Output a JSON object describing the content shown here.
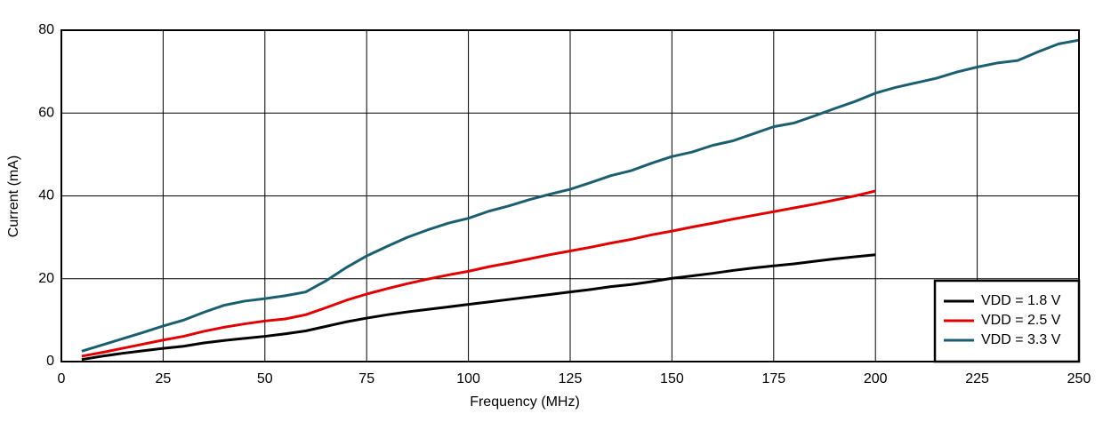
{
  "chart_data": {
    "type": "line",
    "xlabel": "Frequency (MHz)",
    "ylabel": "Current (mA)",
    "x": [
      5,
      10,
      15,
      20,
      25,
      30,
      35,
      40,
      45,
      50,
      55,
      60,
      65,
      70,
      75,
      80,
      85,
      90,
      95,
      100,
      105,
      110,
      115,
      120,
      125,
      130,
      135,
      140,
      145,
      150,
      155,
      160,
      165,
      170,
      175,
      180,
      185,
      190,
      195,
      200,
      205,
      210,
      215,
      220,
      225,
      230,
      235,
      240,
      245,
      250
    ],
    "series": [
      {
        "name": "VDD = 1.8 V",
        "color": "#000000",
        "values": [
          0.5,
          1.3,
          2,
          2.6,
          3.2,
          3.7,
          4.5,
          5.1,
          5.6,
          6.1,
          6.7,
          7.4,
          8.5,
          9.6,
          10.5,
          11.3,
          12,
          12.6,
          13.2,
          13.8,
          14.4,
          15,
          15.6,
          16.2,
          16.8,
          17.4,
          18.1,
          18.6,
          19.3,
          20.1,
          20.7,
          21.3,
          22,
          22.6,
          23.1,
          23.6,
          24.2,
          24.8,
          25.3,
          25.8,
          null,
          null,
          null,
          null,
          null,
          null,
          null,
          null,
          null,
          null
        ]
      },
      {
        "name": "VDD = 2.5 V",
        "color": "#e00000",
        "values": [
          1.3,
          2.2,
          3.2,
          4.2,
          5.2,
          6.1,
          7.3,
          8.3,
          9.1,
          9.8,
          10.3,
          11.3,
          13,
          14.8,
          16.3,
          17.6,
          18.8,
          19.9,
          20.9,
          21.8,
          22.9,
          23.8,
          24.8,
          25.8,
          26.7,
          27.6,
          28.6,
          29.5,
          30.6,
          31.5,
          32.5,
          33.4,
          34.4,
          35.3,
          36.2,
          37.1,
          38,
          39,
          40,
          41.2,
          null,
          null,
          null,
          null,
          null,
          null,
          null,
          null,
          null,
          null
        ]
      },
      {
        "name": "VDD = 3.3 V",
        "color": "#1b5e70",
        "values": [
          2.5,
          4,
          5.5,
          7,
          8.6,
          10,
          11.9,
          13.6,
          14.6,
          15.2,
          15.9,
          16.8,
          19.5,
          22.7,
          25.5,
          27.8,
          30,
          31.8,
          33.4,
          34.6,
          36.3,
          37.6,
          39.1,
          40.4,
          41.6,
          43.2,
          44.9,
          46.1,
          47.9,
          49.5,
          50.6,
          52.2,
          53.3,
          55,
          56.7,
          57.6,
          59.3,
          61.1,
          62.8,
          64.8,
          66.2,
          67.3,
          68.4,
          69.9,
          71.1,
          72.1,
          72.7,
          74.8,
          76.7,
          77.6
        ]
      }
    ],
    "xlim": [
      0,
      250
    ],
    "xticks": [
      0,
      25,
      50,
      75,
      100,
      125,
      150,
      175,
      200,
      225,
      250
    ],
    "ylim": [
      0,
      80
    ],
    "yticks": [
      0,
      20,
      40,
      60,
      80
    ],
    "grid": true,
    "legend": "lower right"
  }
}
